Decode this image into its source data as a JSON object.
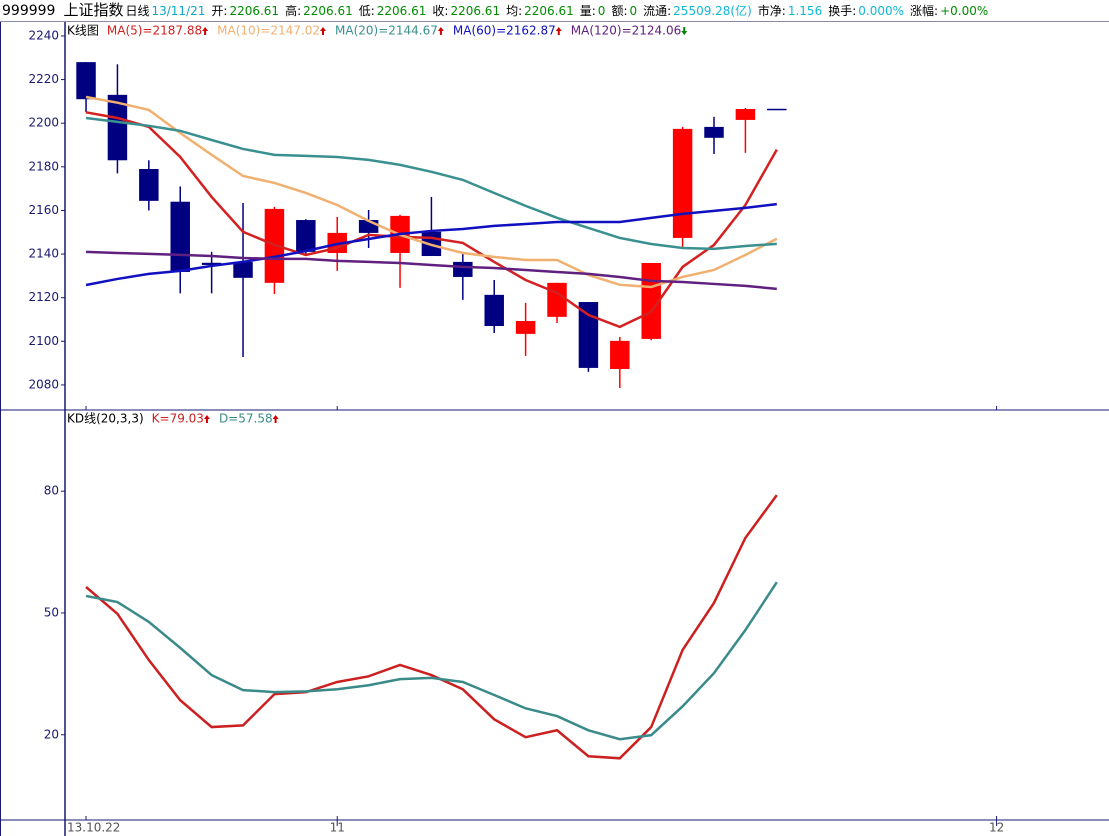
{
  "header": {
    "code": "999999",
    "name": "上证指数",
    "period": "日线",
    "date": "13/11/21",
    "items": [
      {
        "label": "开:",
        "value": "2206.61"
      },
      {
        "label": "高:",
        "value": "2206.61"
      },
      {
        "label": "低:",
        "value": "2206.61"
      },
      {
        "label": "收:",
        "value": "2206.61"
      },
      {
        "label": "均:",
        "value": "2206.61"
      },
      {
        "label": "量:",
        "value": "0"
      },
      {
        "label": "额:",
        "value": "0"
      },
      {
        "label": "流通:",
        "value": "25509.28(亿)"
      },
      {
        "label": "市净:",
        "value": "1.156"
      },
      {
        "label": "换手:",
        "value": "0.000%"
      },
      {
        "label": "涨幅:",
        "value": "+0.00%"
      }
    ]
  },
  "chart_data": [
    {
      "type": "candlestick",
      "title": "K线图",
      "up_color": "#ff0000",
      "down_color": "#000080",
      "open": [
        2228,
        2213,
        2179,
        2164,
        2136,
        2136.4,
        2126.8,
        2155.6,
        2140.5,
        2155.6,
        2140.5,
        2150.2,
        2136.4,
        2121.3,
        2103.4,
        2111.2,
        2118,
        2087.3,
        2101.1,
        2147.4,
        2198.3,
        2201.5,
        2206.61
      ],
      "high": [
        2228,
        2227,
        2183,
        2171,
        2141,
        2163.4,
        2161.6,
        2156,
        2157,
        2160.2,
        2158,
        2166.2,
        2140.5,
        2128.1,
        2117.6,
        2126.8,
        2118,
        2102,
        2135.9,
        2198.3,
        2202.9,
        2207,
        2206.61
      ],
      "low": [
        2205,
        2177,
        2160,
        2122,
        2122,
        2092.8,
        2121.7,
        2140,
        2132.3,
        2142.8,
        2124.5,
        2139.1,
        2119,
        2103.8,
        2093.3,
        2108.4,
        2086,
        2078.6,
        2100.5,
        2142.8,
        2185.9,
        2186.4,
        2206.61
      ],
      "close": [
        2211,
        2183,
        2164.4,
        2131.8,
        2135,
        2129.1,
        2160.7,
        2141,
        2149.7,
        2149.7,
        2157.5,
        2139.1,
        2129.5,
        2107,
        2109.3,
        2126.8,
        2087.8,
        2100.2,
        2135.9,
        2197.4,
        2193.3,
        2206.5,
        2206.61
      ],
      "series": [
        {
          "name": "MA(5)=2187.88",
          "color": "#d42020",
          "values": [
            2205,
            2202.4,
            2198.3,
            2184.5,
            2166.2,
            2150.2,
            2144.2,
            2139.6,
            2142.8,
            2148.8,
            2147.9,
            2147.4,
            2145.1,
            2136.4,
            2128.1,
            2122.2,
            2112.1,
            2106.6,
            2113.5,
            2134.1,
            2144.2,
            2162.5,
            2187.88
          ]
        },
        {
          "name": "MA(10)=2147.02",
          "color": "#f0b070",
          "values": [
            2212,
            2209.4,
            2206.1,
            2195.5,
            2185.5,
            2175.8,
            2172.6,
            2168,
            2162.5,
            2155.2,
            2148.8,
            2144.2,
            2140.5,
            2138.7,
            2137.3,
            2137.3,
            2130.4,
            2125.9,
            2124.9,
            2129.5,
            2132.7,
            2139.6,
            2147.02
          ]
        },
        {
          "name": "MA(20)=2144.67",
          "color": "#3a9090",
          "values": [
            2202.4,
            2200.6,
            2198.8,
            2196.5,
            2192.3,
            2188.2,
            2185.5,
            2185,
            2184.5,
            2183.2,
            2180.9,
            2177.7,
            2174,
            2168,
            2162.1,
            2156.6,
            2152,
            2147.4,
            2144.6,
            2142.8,
            2142.4,
            2143.7,
            2144.67
          ]
        },
        {
          "name": "MA(60)=2162.87",
          "color": "#1010c0",
          "values": [
            2125.8,
            2128.6,
            2130.9,
            2132.3,
            2134.6,
            2136.4,
            2138.7,
            2141.4,
            2144.6,
            2146.9,
            2149.2,
            2150.6,
            2151.5,
            2152.9,
            2153.8,
            2154.7,
            2154.7,
            2154.7,
            2156.6,
            2158.4,
            2159.8,
            2161.2,
            2162.87
          ]
        },
        {
          "name": "MA(120)=2124.06",
          "color": "#602080",
          "values": [
            2141,
            2140.5,
            2140.1,
            2139.6,
            2139.1,
            2138.2,
            2137.8,
            2137.8,
            2136.9,
            2136.4,
            2135.9,
            2135,
            2134.1,
            2133.6,
            2132.7,
            2131.8,
            2130.9,
            2129.5,
            2127.7,
            2127.2,
            2126.3,
            2125.4,
            2124.06
          ]
        }
      ],
      "xlim": [
        -0.67,
        32.58
      ],
      "ylim": [
        2068.5,
        2246.4
      ],
      "yticks": [
        2080,
        2100,
        2120,
        2140,
        2160,
        2180,
        2200,
        2220,
        2240
      ]
    },
    {
      "type": "line",
      "title": "KD线(20,3,3)",
      "series": [
        {
          "name": "K=79.03",
          "color": "#cc2020",
          "values": [
            56.4,
            49.8,
            38.4,
            28.5,
            21.9,
            22.3,
            30,
            30.5,
            33,
            34.4,
            37.2,
            34.7,
            31.2,
            23.8,
            19.4,
            21.1,
            14.7,
            14.2,
            21.9,
            40.9,
            52.5,
            68.5,
            79.03
          ]
        },
        {
          "name": "D=57.58",
          "color": "#3a8a8a",
          "values": [
            54.2,
            52.7,
            47.8,
            41.4,
            34.7,
            31,
            30.5,
            30.7,
            31.2,
            32.2,
            33.7,
            34,
            33,
            29.8,
            26.5,
            24.6,
            21.1,
            18.9,
            19.9,
            27,
            35.2,
            45.8,
            57.58
          ]
        }
      ],
      "xlim": [
        -0.67,
        32.58
      ],
      "ylim": [
        -1,
        100
      ],
      "yticks": [
        20,
        50,
        80
      ],
      "xticks": [
        {
          "value": 0,
          "label": "13.10.22"
        },
        {
          "value": 8,
          "label": "11"
        },
        {
          "value": 29,
          "label": "12"
        }
      ]
    }
  ]
}
